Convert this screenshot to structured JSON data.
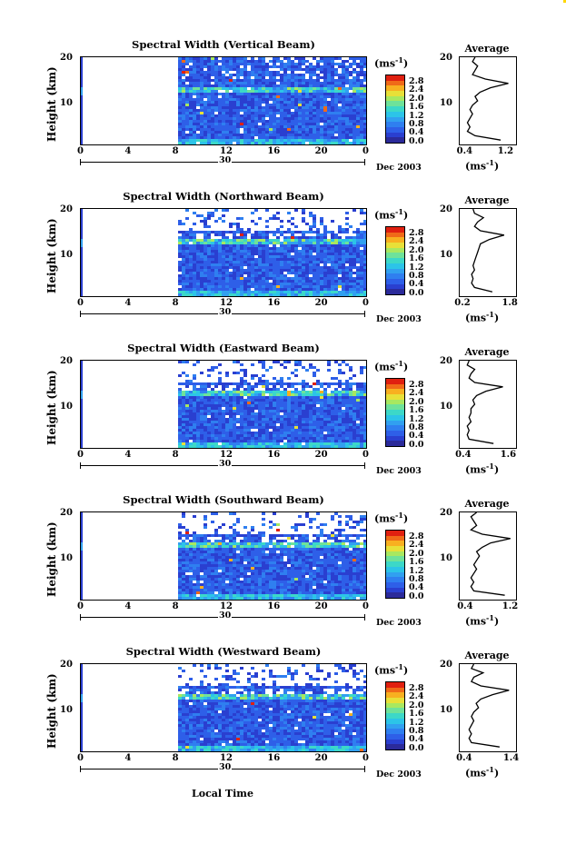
{
  "figure": {
    "x_axis_label": "Local Time",
    "date_label": "Dec 2003",
    "day_label": "30",
    "colorbar_unit": "(ms",
    "colorbar_unit_sup": "-1",
    "colorbar_unit_close": ")",
    "avg_title": "Average",
    "avg_unit": "(ms",
    "avg_unit_sup": "-1",
    "avg_unit_close": ")",
    "y_label": "Height (km)"
  },
  "colors": {
    "scale": [
      "#2b2a9a",
      "#2a3fd0",
      "#2e5fe8",
      "#2f7ff0",
      "#31a0f0",
      "#2cc4e8",
      "#3cd8c8",
      "#6ee29a",
      "#a8e860",
      "#e8e038",
      "#f8b020",
      "#f06a18",
      "#e02010"
    ]
  },
  "chart_data": [
    {
      "type": "heatmap",
      "title": "Spectral Width (Vertical Beam)",
      "xlabel": "Local Time",
      "ylabel": "Height (km)",
      "x_ticks": [
        "0",
        "4",
        "8",
        "12",
        "16",
        "20",
        "0"
      ],
      "y_ticks": [
        "20",
        "10"
      ],
      "ylim": [
        0,
        20
      ],
      "xlim": [
        0,
        24
      ],
      "colorbar": {
        "unit": "ms-1",
        "ticks": [
          "2.8",
          "2.4",
          "2.0",
          "1.6",
          "1.2",
          "0.8",
          "0.4",
          "0.0"
        ],
        "range": [
          0,
          3.0
        ]
      },
      "data_start_hour": 8.2,
      "average_profile": {
        "xticks": [
          "0.4",
          "1.2"
        ],
        "xlim": [
          0.3,
          1.4
        ],
        "heights_km": [
          1,
          2,
          3,
          4,
          5,
          6,
          7,
          8,
          9,
          10,
          11,
          12,
          13,
          14,
          15,
          16,
          17,
          18,
          19,
          20
        ],
        "values": [
          1.1,
          0.6,
          0.45,
          0.5,
          0.45,
          0.5,
          0.55,
          0.5,
          0.55,
          0.65,
          0.6,
          0.7,
          0.9,
          1.25,
          0.8,
          0.55,
          0.6,
          0.65,
          0.55,
          0.6
        ]
      }
    },
    {
      "type": "heatmap",
      "title": "Spectral Width (Northward Beam)",
      "xlabel": "Local Time",
      "ylabel": "Height (km)",
      "x_ticks": [
        "0",
        "4",
        "8",
        "12",
        "16",
        "20",
        "0"
      ],
      "y_ticks": [
        "20",
        "10"
      ],
      "ylim": [
        0,
        20
      ],
      "xlim": [
        0,
        24
      ],
      "colorbar": {
        "unit": "ms-1",
        "ticks": [
          "2.8",
          "2.4",
          "2.0",
          "1.6",
          "1.2",
          "0.8",
          "0.4",
          "0.0"
        ],
        "range": [
          0,
          3.0
        ]
      },
      "data_start_hour": 8.2,
      "average_profile": {
        "xticks": [
          "0.2",
          "1.8"
        ],
        "xlim": [
          0.1,
          2.0
        ],
        "heights_km": [
          1,
          2,
          3,
          4,
          5,
          6,
          7,
          8,
          9,
          10,
          11,
          12,
          13,
          14,
          15,
          16,
          17,
          18,
          19,
          20
        ],
        "values": [
          1.2,
          0.6,
          0.5,
          0.55,
          0.5,
          0.6,
          0.55,
          0.6,
          0.65,
          0.7,
          0.75,
          0.8,
          1.1,
          1.6,
          0.8,
          0.6,
          0.7,
          0.9,
          0.6,
          0.55
        ]
      }
    },
    {
      "type": "heatmap",
      "title": "Spectral Width (Eastward Beam)",
      "xlabel": "Local Time",
      "ylabel": "Height (km)",
      "x_ticks": [
        "0",
        "4",
        "8",
        "12",
        "16",
        "20",
        "0"
      ],
      "y_ticks": [
        "20",
        "10"
      ],
      "ylim": [
        0,
        20
      ],
      "xlim": [
        0,
        24
      ],
      "colorbar": {
        "unit": "ms-1",
        "ticks": [
          "2.8",
          "2.4",
          "2.0",
          "1.6",
          "1.2",
          "0.8",
          "0.4",
          "0.0"
        ],
        "range": [
          0,
          3.0
        ]
      },
      "data_start_hour": 8.2,
      "average_profile": {
        "xticks": [
          "0.4",
          "1.6"
        ],
        "xlim": [
          0.3,
          1.8
        ],
        "heights_km": [
          1,
          2,
          3,
          4,
          5,
          6,
          7,
          8,
          9,
          10,
          11,
          12,
          13,
          14,
          15,
          16,
          17,
          18,
          19,
          20
        ],
        "values": [
          1.2,
          0.55,
          0.5,
          0.55,
          0.5,
          0.6,
          0.55,
          0.6,
          0.6,
          0.7,
          0.65,
          0.75,
          1.0,
          1.45,
          0.7,
          0.55,
          0.6,
          0.7,
          0.5,
          0.55
        ]
      }
    },
    {
      "type": "heatmap",
      "title": "Spectral Width (Southward Beam)",
      "xlabel": "Local Time",
      "ylabel": "Height (km)",
      "x_ticks": [
        "0",
        "4",
        "8",
        "12",
        "16",
        "20",
        "0"
      ],
      "y_ticks": [
        "20",
        "10"
      ],
      "ylim": [
        0,
        20
      ],
      "xlim": [
        0,
        24
      ],
      "colorbar": {
        "unit": "ms-1",
        "ticks": [
          "2.8",
          "2.4",
          "2.0",
          "1.6",
          "1.2",
          "0.8",
          "0.4",
          "0.0"
        ],
        "range": [
          0,
          3.0
        ]
      },
      "data_start_hour": 8.2,
      "average_profile": {
        "xticks": [
          "0.4",
          "1.2"
        ],
        "xlim": [
          0.3,
          1.3
        ],
        "heights_km": [
          1,
          2,
          3,
          4,
          5,
          6,
          7,
          8,
          9,
          10,
          11,
          12,
          13,
          14,
          15,
          16,
          17,
          18,
          19,
          20
        ],
        "values": [
          1.1,
          0.55,
          0.5,
          0.55,
          0.5,
          0.55,
          0.6,
          0.55,
          0.6,
          0.65,
          0.6,
          0.7,
          0.85,
          1.2,
          0.7,
          0.5,
          0.6,
          0.55,
          0.5,
          0.6
        ]
      }
    },
    {
      "type": "heatmap",
      "title": "Spectral Width (Westward Beam)",
      "xlabel": "Local Time",
      "ylabel": "Height (km)",
      "x_ticks": [
        "0",
        "4",
        "8",
        "12",
        "16",
        "20",
        "0"
      ],
      "y_ticks": [
        "20",
        "10"
      ],
      "ylim": [
        0,
        20
      ],
      "xlim": [
        0,
        24
      ],
      "colorbar": {
        "unit": "ms-1",
        "ticks": [
          "2.8",
          "2.4",
          "2.0",
          "1.6",
          "1.2",
          "0.8",
          "0.4",
          "0.0"
        ],
        "range": [
          0,
          3.0
        ]
      },
      "data_start_hour": 8.2,
      "average_profile": {
        "xticks": [
          "0.4",
          "1.4"
        ],
        "xlim": [
          0.3,
          1.5
        ],
        "heights_km": [
          1,
          2,
          3,
          4,
          5,
          6,
          7,
          8,
          9,
          10,
          11,
          12,
          13,
          14,
          15,
          16,
          17,
          18,
          19,
          20
        ],
        "values": [
          1.15,
          0.55,
          0.5,
          0.55,
          0.5,
          0.55,
          0.6,
          0.55,
          0.6,
          0.7,
          0.65,
          0.75,
          1.0,
          1.35,
          0.75,
          0.55,
          0.6,
          0.8,
          0.55,
          0.6
        ]
      }
    }
  ]
}
